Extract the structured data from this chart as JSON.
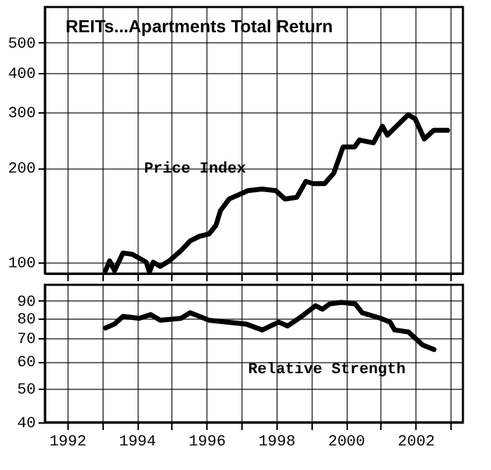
{
  "chart_data": [
    {
      "type": "line",
      "title": "REITs...Apartments Total Return",
      "log": "y",
      "grid": true,
      "legend": false,
      "tick_labels": "y",
      "marker": "none",
      "line_style": "solid",
      "xlim": [
        1991.36,
        2003.36
      ],
      "xticks": [
        1992,
        {
          "value": 1993,
          "label": null
        },
        1994,
        {
          "value": 1995,
          "label": null
        },
        1996,
        {
          "value": 1997,
          "label": null
        },
        1998,
        {
          "value": 1999,
          "label": null
        },
        2000,
        {
          "value": 2001,
          "label": null
        },
        2002,
        {
          "value": 2003,
          "label": null
        }
      ],
      "ylim": [
        92,
        650
      ],
      "yticks": [
        100,
        200,
        300,
        400,
        500
      ],
      "series": [
        {
          "name": "Price Index",
          "color": "#000000",
          "x": [
            1993.1,
            1993.22,
            1993.36,
            1993.6,
            1993.87,
            1994.27,
            1994.36,
            1994.47,
            1994.67,
            1994.93,
            1995.27,
            1995.53,
            1995.8,
            1996.07,
            1996.27,
            1996.4,
            1996.65,
            1997.19,
            1997.59,
            1997.99,
            1998.25,
            1998.59,
            1998.85,
            1999.05,
            1999.39,
            1999.65,
            1999.92,
            2000.25,
            2000.39,
            2000.79,
            2001.05,
            2001.19,
            2001.45,
            2001.79,
            2001.99,
            2002.25,
            2002.52,
            2002.92
          ],
          "values": [
            94,
            101,
            94,
            107,
            106,
            100,
            93,
            100,
            97,
            101,
            109,
            117,
            121,
            123,
            131,
            146,
            159,
            169,
            171,
            169,
            159,
            161,
            181,
            178,
            178,
            192,
            233,
            233,
            245,
            240,
            271,
            254,
            271,
            295,
            286,
            247,
            263,
            263
          ]
        }
      ]
    },
    {
      "type": "line",
      "log": "y",
      "grid": true,
      "legend": false,
      "marker": "none",
      "line_style": "solid",
      "xlim": [
        1991.36,
        2003.36
      ],
      "xticks": [
        1992,
        {
          "value": 1993,
          "label": null
        },
        1994,
        {
          "value": 1995,
          "label": null
        },
        1996,
        {
          "value": 1997,
          "label": null
        },
        1998,
        {
          "value": 1999,
          "label": null
        },
        2000,
        {
          "value": 2001,
          "label": null
        },
        2002,
        {
          "value": 2003,
          "label": null
        }
      ],
      "ylim": [
        40,
        100
      ],
      "yticks": [
        40,
        50,
        60,
        70,
        80,
        90
      ],
      "series": [
        {
          "name": "Relative Strength",
          "color": "#000000",
          "x": [
            1993.1,
            1993.36,
            1993.6,
            1994.07,
            1994.4,
            1994.67,
            1995.27,
            1995.53,
            1996.07,
            1996.6,
            1997.13,
            1997.6,
            1998.07,
            1998.33,
            1998.73,
            1999.13,
            1999.33,
            1999.53,
            1999.87,
            2000.27,
            2000.47,
            2001.0,
            2001.27,
            2001.4,
            2001.8,
            2002.2,
            2002.53
          ],
          "values": [
            75,
            77,
            81,
            80,
            82,
            79,
            80,
            83,
            79,
            78,
            77,
            74,
            78,
            76,
            81,
            87,
            85,
            88,
            89,
            88,
            83,
            80,
            78,
            74,
            73,
            67,
            65
          ]
        }
      ]
    }
  ]
}
